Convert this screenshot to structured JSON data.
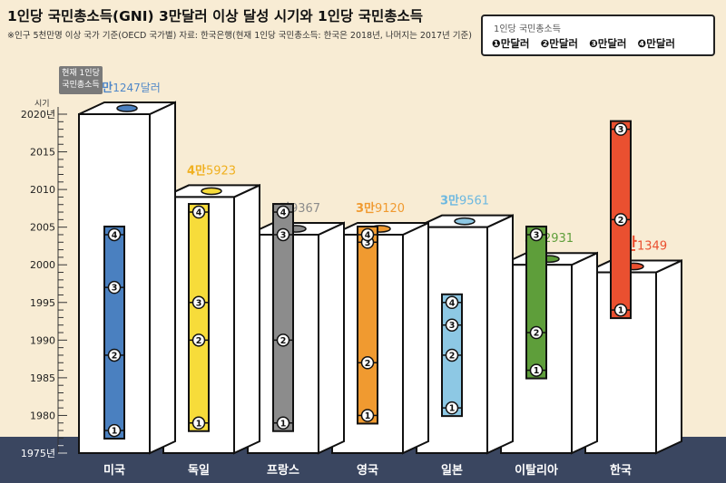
{
  "title": "1인당 국민총소득(GNI) 3만달러 이상 달성 시기와 1인당 국민총소득",
  "note": "※인구 5천만명 이상 국가 기준(OECD 국가별) 자료: 한국은행(현재 1인당 국민총소득: 한국은 2018년, 나머지는 2017년 기준)",
  "legend": {
    "title": "1인당 국민총소득",
    "items": [
      "❶만달러",
      "❷만달러",
      "❸만달러",
      "❹만달러"
    ]
  },
  "current_gni_label_line1": "현재 1인당",
  "current_gni_label_line2": "국민총소득",
  "colors": {
    "background": "#f8ecd4",
    "ground": "#3a4660",
    "box": "#ffffff"
  },
  "chart_data": {
    "type": "bar",
    "ylabel": "시기",
    "ylim": [
      1975,
      2020
    ],
    "yticks": [
      "1975년",
      "1980",
      "1985",
      "1990",
      "1995",
      "2000",
      "2005",
      "2010",
      "2015",
      "2020년"
    ],
    "categories": [
      "미국",
      "독일",
      "프랑스",
      "영국",
      "일본",
      "이탈리아",
      "한국"
    ],
    "current_gni": [
      {
        "big": "6만",
        "small": "1247달러"
      },
      {
        "big": "4만",
        "small": "5923"
      },
      {
        "big": "3만",
        "small": "9367"
      },
      {
        "big": "3만",
        "small": "9120"
      },
      {
        "big": "3만",
        "small": "9561"
      },
      {
        "big": "3만",
        "small": "2931"
      },
      {
        "big": "3만",
        "small": "1349"
      }
    ],
    "bar_colors": [
      "#4a80c0",
      "#f7dc3a",
      "#8c8c8c",
      "#f09a30",
      "#8dc8e4",
      "#5e9e3a",
      "#ea5030"
    ],
    "value_colors": [
      "#4f87c8",
      "#f0b020",
      "#8c8c8c",
      "#f09a30",
      "#6cb8e0",
      "#5e9e3a",
      "#ea5030"
    ],
    "box_top_year": [
      2020,
      2009,
      2004,
      2004,
      2005,
      2000,
      1999
    ],
    "milestones": [
      [
        {
          "year": 1978,
          "label": "1"
        },
        {
          "year": 1988,
          "label": "2"
        },
        {
          "year": 1997,
          "label": "3"
        },
        {
          "year": 2004,
          "label": "4"
        }
      ],
      [
        {
          "year": 1979,
          "label": "1"
        },
        {
          "year": 1990,
          "label": "2"
        },
        {
          "year": 1995,
          "label": "3"
        },
        {
          "year": 2007,
          "label": "4"
        }
      ],
      [
        {
          "year": 1979,
          "label": "1"
        },
        {
          "year": 1990,
          "label": "2"
        },
        {
          "year": 2004,
          "label": "3"
        },
        {
          "year": 2007,
          "label": "4"
        }
      ],
      [
        {
          "year": 1980,
          "label": "1"
        },
        {
          "year": 1987,
          "label": "2"
        },
        {
          "year": 2003,
          "label": "3"
        },
        {
          "year": 2004,
          "label": "4"
        }
      ],
      [
        {
          "year": 1981,
          "label": "1"
        },
        {
          "year": 1988,
          "label": "2"
        },
        {
          "year": 1992,
          "label": "3"
        },
        {
          "year": 1995,
          "label": "4"
        }
      ],
      [
        {
          "year": 1986,
          "label": "1"
        },
        {
          "year": 1991,
          "label": "2"
        },
        {
          "year": 2004,
          "label": "3"
        }
      ],
      [
        {
          "year": 1994,
          "label": "1"
        },
        {
          "year": 2006,
          "label": "2"
        },
        {
          "year": 2018,
          "label": "3"
        }
      ]
    ]
  }
}
